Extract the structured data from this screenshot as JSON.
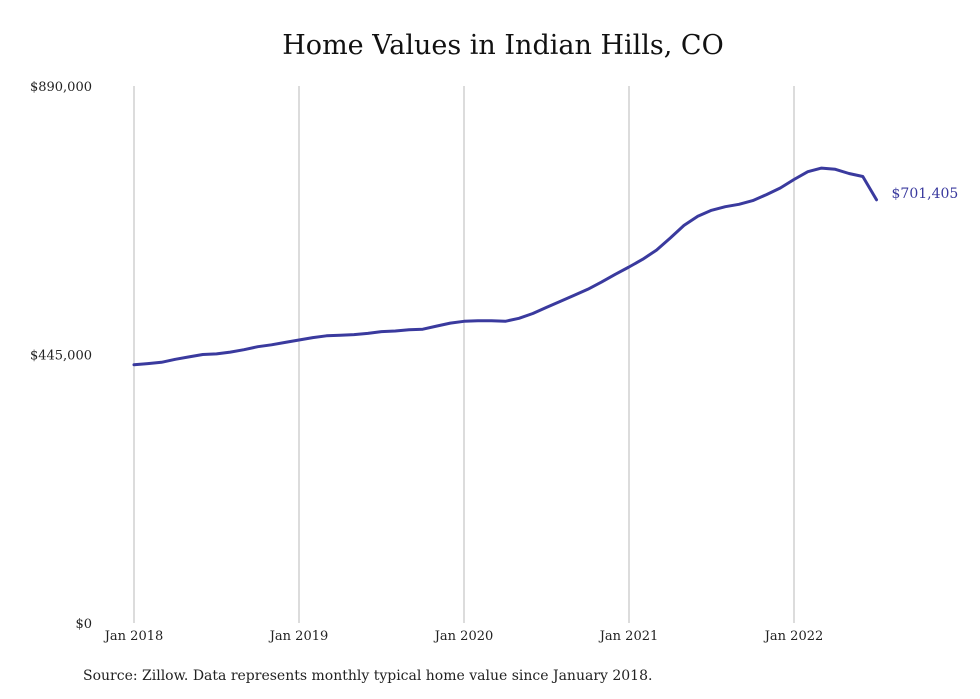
{
  "chart_data": {
    "type": "line",
    "title": "Home Values in Indian Hills, CO",
    "xlabel": "",
    "ylabel": "",
    "ylim": [
      0,
      890000
    ],
    "y_ticks": [
      "$0",
      "$445,000",
      "$890,000"
    ],
    "y_tick_values": [
      0,
      445000,
      890000
    ],
    "x_ticks": [
      "Jan 2018",
      "Jan 2019",
      "Jan 2020",
      "Jan 2021",
      "Jan 2022"
    ],
    "x_tick_dates": [
      "2018-01",
      "2019-01",
      "2020-01",
      "2021-01",
      "2022-01"
    ],
    "grid": "vertical at x ticks",
    "series": [
      {
        "x": [
          "2018-01",
          "2018-02",
          "2018-03",
          "2018-04",
          "2018-05",
          "2018-06",
          "2018-07",
          "2018-08",
          "2018-09",
          "2018-10",
          "2018-11",
          "2018-12",
          "2019-01",
          "2019-02",
          "2019-03",
          "2019-04",
          "2019-05",
          "2019-06",
          "2019-07",
          "2019-08",
          "2019-09",
          "2019-10",
          "2019-11",
          "2019-12",
          "2020-01",
          "2020-02",
          "2020-03",
          "2020-04",
          "2020-05",
          "2020-06",
          "2020-07",
          "2020-08",
          "2020-09",
          "2020-10",
          "2020-11",
          "2020-12",
          "2021-01",
          "2021-02",
          "2021-03",
          "2021-04",
          "2021-05",
          "2021-06",
          "2021-07",
          "2021-08",
          "2021-09",
          "2021-10",
          "2021-11",
          "2021-12",
          "2022-01",
          "2022-02",
          "2022-03",
          "2022-04",
          "2022-05",
          "2022-06",
          "2022-07"
        ],
        "values": [
          428000,
          430000,
          432000,
          437000,
          441000,
          445000,
          446000,
          449000,
          453000,
          458000,
          461000,
          465000,
          469000,
          473000,
          476000,
          477000,
          478000,
          480000,
          483000,
          484000,
          486000,
          487000,
          492000,
          497000,
          500000,
          501000,
          501000,
          500000,
          505000,
          513000,
          523000,
          533000,
          543000,
          553000,
          565000,
          578000,
          590000,
          603000,
          618000,
          638000,
          659000,
          674000,
          684000,
          690000,
          694000,
          700000,
          710000,
          721000,
          735000,
          748000,
          754000,
          752000,
          745000,
          740000,
          701405
        ],
        "color": "#3a3a9e",
        "end_label": "$701,405"
      }
    ]
  },
  "source_note": "Source: Zillow. Data represents monthly typical home value since January 2018."
}
